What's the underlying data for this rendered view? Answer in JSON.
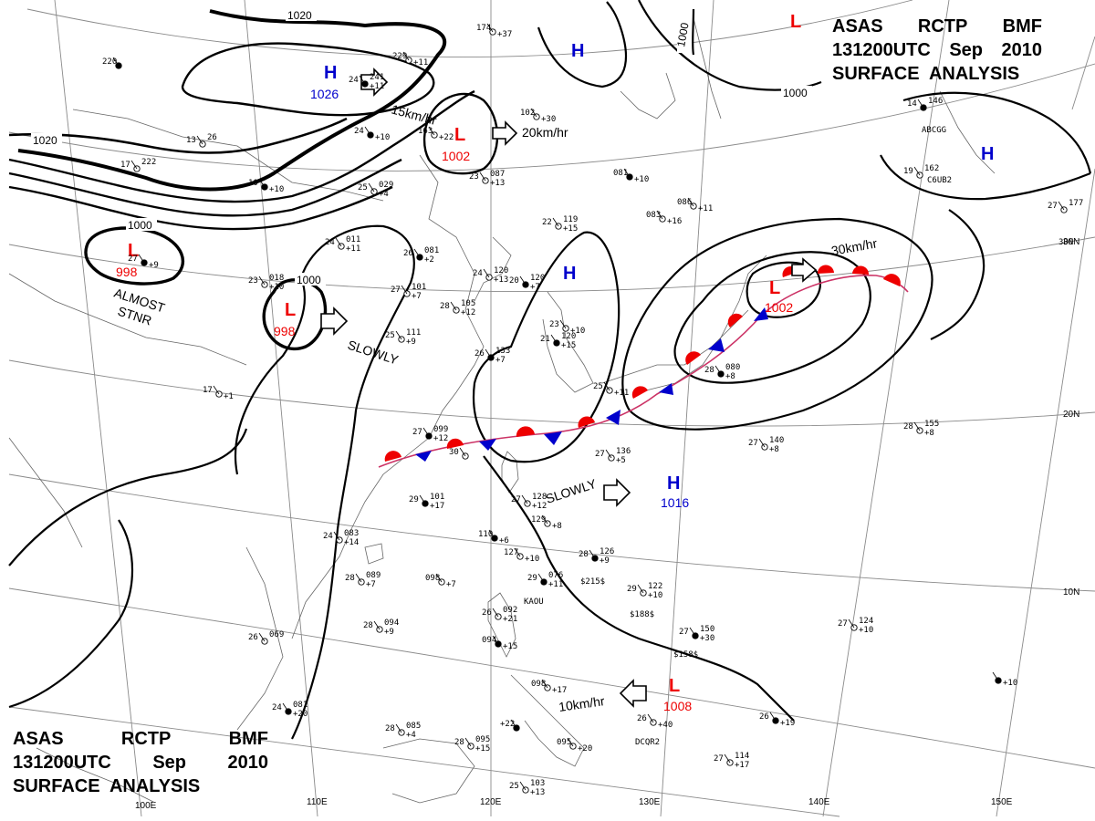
{
  "title": {
    "line1": [
      "ASAS",
      "RCTP",
      "BMF"
    ],
    "line2": [
      "131200UTC",
      "Sep",
      "2010"
    ],
    "line3": "SURFACE  ANALYSIS"
  },
  "grid_labels": {
    "longitudes": [
      "110E",
      "120E",
      "130E",
      "140E",
      "150E"
    ],
    "latitudes": [
      "10N",
      "20N",
      "30N"
    ],
    "partial_lon": "100E"
  },
  "isobar_labels": [
    "1020",
    "1020",
    "1000",
    "1000",
    "1000",
    "1000"
  ],
  "pressure_systems": [
    {
      "type": "H",
      "value": "1026",
      "color": "#0000cc"
    },
    {
      "type": "L",
      "value": "1002",
      "color": "#ee0000"
    },
    {
      "type": "L",
      "value": "998",
      "color": "#ee0000"
    },
    {
      "type": "L",
      "value": "998",
      "color": "#ee0000"
    },
    {
      "type": "H",
      "value": "",
      "color": "#0000cc"
    },
    {
      "type": "H",
      "value": "",
      "color": "#0000cc"
    },
    {
      "type": "L",
      "value": "1002",
      "color": "#ee0000"
    },
    {
      "type": "H",
      "value": "",
      "color": "#0000cc"
    },
    {
      "type": "H",
      "value": "1016",
      "color": "#0000cc"
    },
    {
      "type": "L",
      "value": "1008",
      "color": "#ee0000"
    },
    {
      "type": "L",
      "value": "",
      "color": "#ee0000"
    }
  ],
  "motion_notes": [
    "15km/hr",
    "20km/hr",
    "SLOWLY",
    "30km/hr",
    "SLOWLY",
    "10km/hr"
  ],
  "stationary_note": [
    "ALMOST",
    "STNR"
  ],
  "front": {
    "type": "stationary",
    "warm_color": "#ee0000",
    "cold_color": "#0000cc"
  },
  "stations": [
    {
      "t": "220",
      "v": "",
      "p": ""
    },
    {
      "t": "13",
      "v": "26",
      "p": ""
    },
    {
      "t": "17",
      "v": "222",
      "p": ""
    },
    {
      "t": "24",
      "v": "241",
      "p": "+11"
    },
    {
      "t": "229",
      "v": "",
      "p": "+11"
    },
    {
      "t": "174",
      "v": "",
      "p": "+37"
    },
    {
      "t": "24",
      "v": "",
      "p": "+10"
    },
    {
      "t": "163",
      "v": "",
      "p": "+22"
    },
    {
      "t": "102",
      "v": "",
      "p": "+30"
    },
    {
      "t": "10",
      "v": "",
      "p": "+10"
    },
    {
      "t": "25",
      "v": "029",
      "p": "+4"
    },
    {
      "t": "23",
      "v": "087",
      "p": "+13"
    },
    {
      "t": "081",
      "v": "",
      "p": "+10"
    },
    {
      "t": "086",
      "v": "",
      "p": "+11"
    },
    {
      "t": "083",
      "v": "",
      "p": "+16"
    },
    {
      "t": "27",
      "v": "",
      "p": "+9"
    },
    {
      "t": "24",
      "v": "011",
      "p": "+11"
    },
    {
      "t": "23",
      "v": "018",
      "p": "+10"
    },
    {
      "t": "26",
      "v": "081",
      "p": "+2"
    },
    {
      "t": "22",
      "v": "119",
      "p": "+15"
    },
    {
      "t": "24",
      "v": "120",
      "p": "+13"
    },
    {
      "t": "20",
      "v": "120",
      "p": "+7"
    },
    {
      "t": "27",
      "v": "101",
      "p": "+7"
    },
    {
      "t": "28",
      "v": "105",
      "p": "+12"
    },
    {
      "t": "21",
      "v": "120",
      "p": "+15"
    },
    {
      "t": "25",
      "v": "111",
      "p": "+9"
    },
    {
      "t": "23",
      "v": "",
      "p": "+10"
    },
    {
      "t": "26",
      "v": "133",
      "p": "+7"
    },
    {
      "t": "17",
      "v": "",
      "p": "+1"
    },
    {
      "t": "30",
      "v": "",
      "p": ""
    },
    {
      "t": "27",
      "v": "099",
      "p": "+12"
    },
    {
      "t": "27",
      "v": "136",
      "p": "+5"
    },
    {
      "t": "25",
      "v": "",
      "p": "+11"
    },
    {
      "t": "28",
      "v": "080",
      "p": "+8"
    },
    {
      "t": "27",
      "v": "140",
      "p": "+8"
    },
    {
      "t": "28",
      "v": "155",
      "p": "+8"
    },
    {
      "t": "29",
      "v": "101",
      "p": "+17"
    },
    {
      "t": "27",
      "v": "128",
      "p": "+12"
    },
    {
      "t": "129",
      "v": "",
      "p": "+8"
    },
    {
      "t": "110",
      "v": "",
      "p": "+6"
    },
    {
      "t": "24",
      "v": "083",
      "p": "+14"
    },
    {
      "t": "127",
      "v": "",
      "p": "+10"
    },
    {
      "t": "28",
      "v": "126",
      "p": "+9"
    },
    {
      "t": "28",
      "v": "089",
      "p": "+7"
    },
    {
      "t": "098",
      "v": "",
      "p": "+7"
    },
    {
      "t": "29",
      "v": "076",
      "p": "+11"
    },
    {
      "t": "29",
      "v": "122",
      "p": "+10"
    },
    {
      "t": "26",
      "v": "092",
      "p": "+21"
    },
    {
      "t": "094",
      "v": "",
      "p": "+15"
    },
    {
      "t": "26",
      "v": "069",
      "p": ""
    },
    {
      "t": "28",
      "v": "094",
      "p": "+9"
    },
    {
      "t": "27",
      "v": "150",
      "p": "+30"
    },
    {
      "t": "27",
      "v": "124",
      "p": "+10"
    },
    {
      "t": "098",
      "v": "",
      "p": "+17"
    },
    {
      "t": "24",
      "v": "081",
      "p": "+20"
    },
    {
      "t": "28",
      "v": "085",
      "p": "+4"
    },
    {
      "t": "28",
      "v": "095",
      "p": "+15"
    },
    {
      "t": "+22",
      "v": "",
      "p": ""
    },
    {
      "t": "095",
      "v": "",
      "p": "+20"
    },
    {
      "t": "26",
      "v": "",
      "p": "+40"
    },
    {
      "t": "26",
      "v": "",
      "p": "+19"
    },
    {
      "t": "27",
      "v": "114",
      "p": "+17"
    },
    {
      "t": "25",
      "v": "103",
      "p": "+13"
    },
    {
      "t": "14",
      "v": "146",
      "p": ""
    },
    {
      "t": "19",
      "v": "162",
      "p": ""
    },
    {
      "t": "27",
      "v": "177",
      "p": ""
    },
    {
      "t": "",
      "v": "",
      "p": "+10"
    }
  ],
  "station_codes": [
    "KAOU",
    "ABCGG",
    "C6UB2",
    "DCQR2",
    "$215$",
    "$188$",
    "$158$",
    "3DN"
  ]
}
